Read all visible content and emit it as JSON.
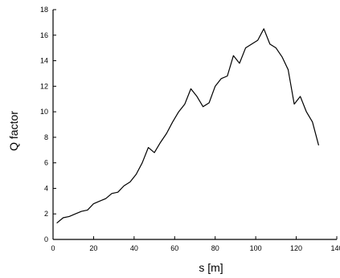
{
  "chart_data": {
    "type": "line",
    "title": "",
    "xlabel": "s  [m]",
    "ylabel": "Q factor",
    "xlim": [
      0,
      140
    ],
    "ylim": [
      0,
      18
    ],
    "xticks": [
      0,
      20,
      40,
      60,
      80,
      100,
      120,
      140
    ],
    "yticks": [
      0,
      2,
      4,
      6,
      8,
      10,
      12,
      14,
      16,
      18
    ],
    "grid": false,
    "legend": "none",
    "series": [
      {
        "x": [
          2,
          5,
          8,
          11,
          14,
          17,
          20,
          23,
          26,
          29,
          32,
          35,
          38,
          41,
          44,
          47,
          50,
          53,
          56,
          59,
          62,
          65,
          68,
          71,
          74,
          77,
          80,
          83,
          86,
          89,
          92,
          95,
          98,
          101,
          104,
          107,
          110,
          113,
          116,
          119,
          122,
          125,
          128,
          131
        ],
        "y": [
          1.3,
          1.7,
          1.8,
          2.0,
          2.2,
          2.3,
          2.8,
          3.0,
          3.2,
          3.6,
          3.7,
          4.2,
          4.5,
          5.1,
          6.0,
          7.2,
          6.8,
          7.6,
          8.3,
          9.2,
          10.0,
          10.6,
          11.8,
          11.2,
          10.4,
          10.7,
          12.0,
          12.6,
          12.8,
          14.4,
          13.8,
          15.0,
          15.3,
          15.6,
          16.5,
          15.3,
          15.0,
          14.3,
          13.3,
          10.6,
          11.2,
          10.0,
          9.2,
          7.4
        ]
      }
    ],
    "color": "#000000"
  }
}
